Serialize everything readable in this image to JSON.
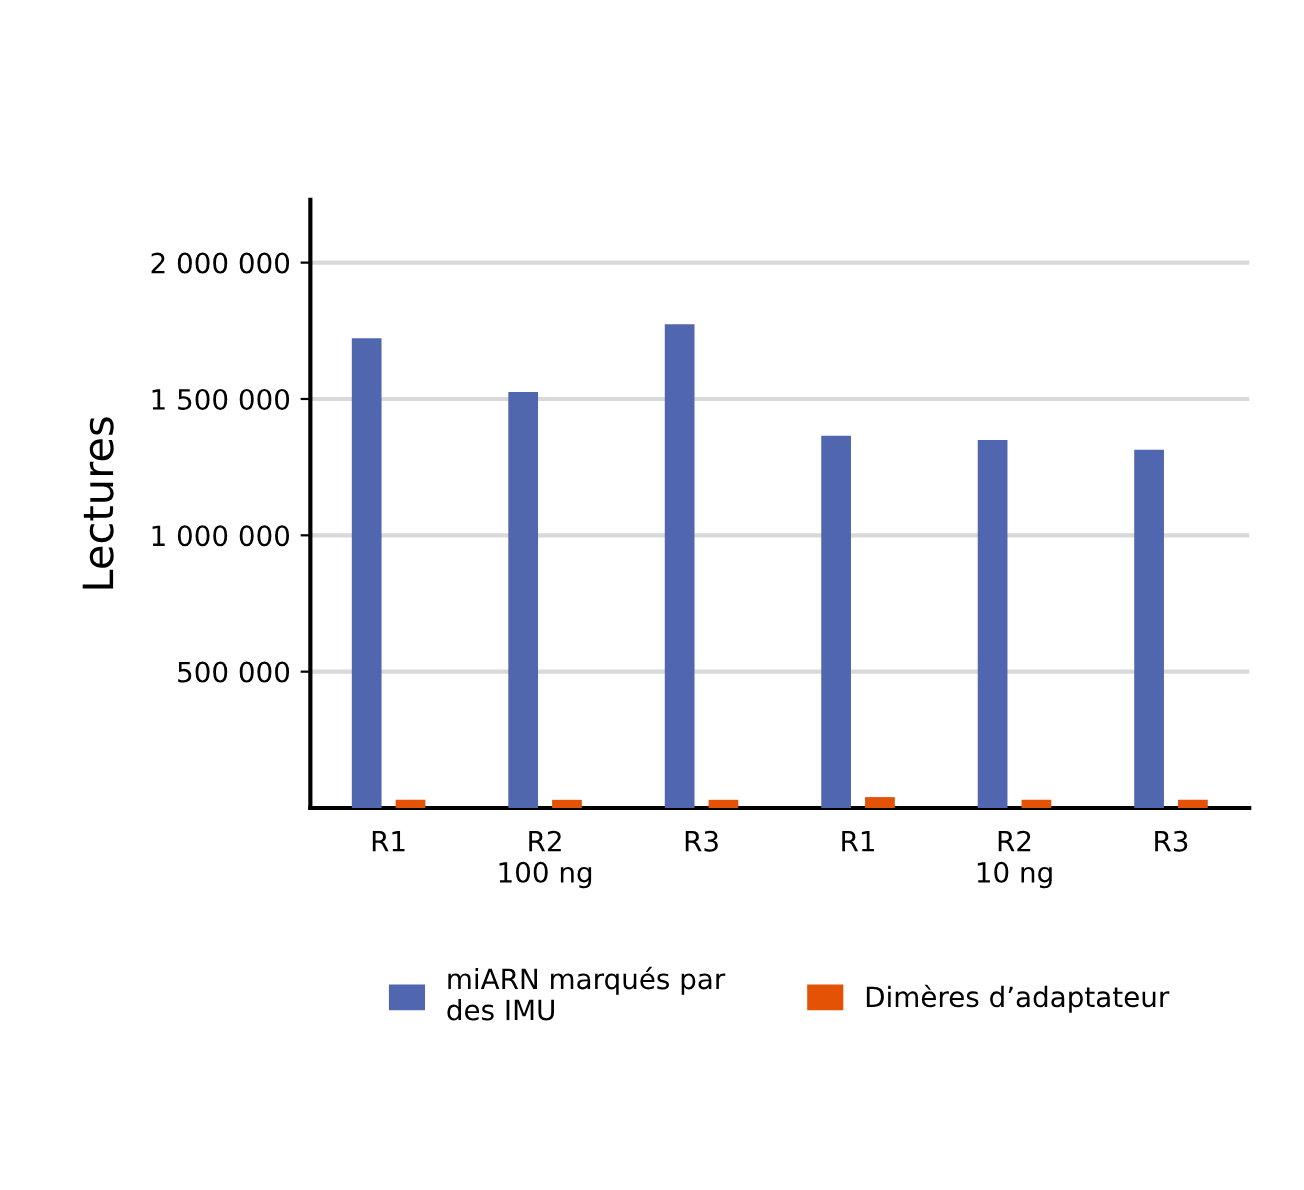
{
  "chart_data": {
    "type": "bar",
    "ylabel": "Lectures",
    "categories": [
      "R1",
      "R2\n100 ng",
      "R3",
      "R1",
      "R2\n10 ng",
      "R3"
    ],
    "series": [
      {
        "name": "miARN marqués par\ndes IMU",
        "color": "#5067b0",
        "values": [
          1723000,
          1526000,
          1774000,
          1365000,
          1350000,
          1314000
        ]
      },
      {
        "name": "Dimères d’adaptateur",
        "color": "#e35205",
        "values": [
          30000,
          30000,
          30000,
          40000,
          30000,
          30000
        ]
      }
    ],
    "ylim": [
      0,
      2230000
    ],
    "yticks": [
      {
        "value": 500000,
        "label": "500 000"
      },
      {
        "value": 1000000,
        "label": "1 000 000"
      },
      {
        "value": 1500000,
        "label": "1 500 000"
      },
      {
        "value": 2000000,
        "label": "2 000 000"
      }
    ],
    "grid": "y",
    "legend": "bottom"
  }
}
